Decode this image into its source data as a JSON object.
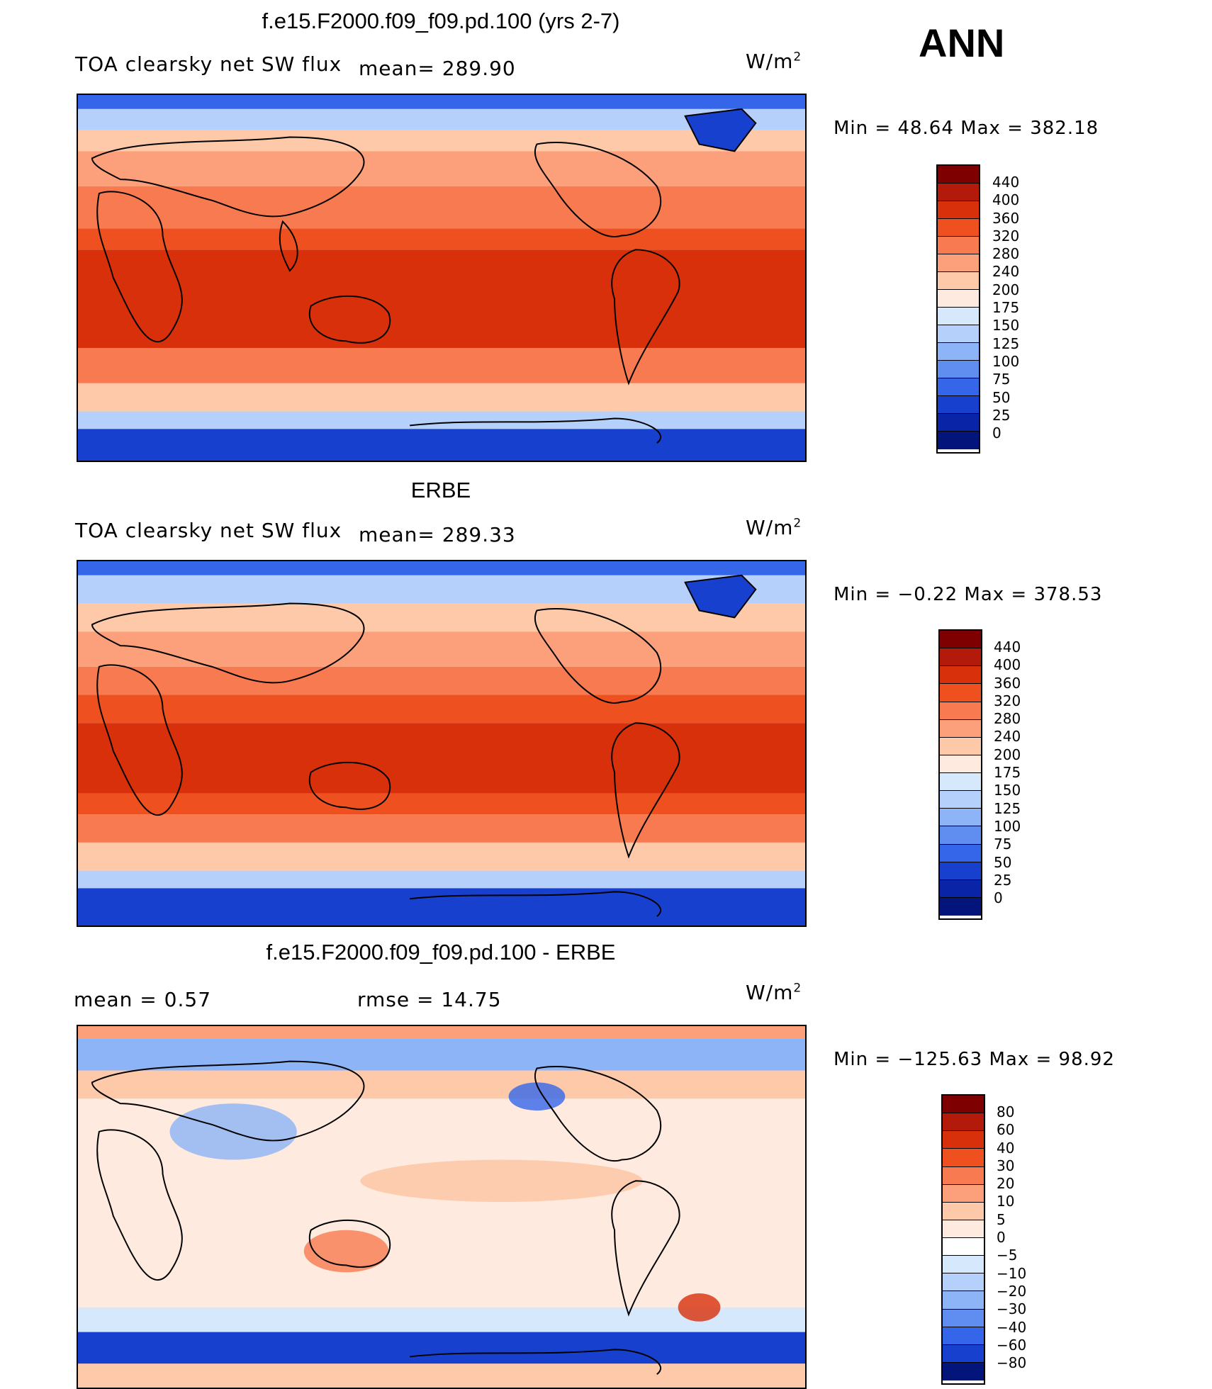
{
  "annotation": "ANN",
  "panels": [
    {
      "id": "model",
      "title": "f.e15.F2000.f09_f09.pd.100 (yrs 2-7)",
      "left_label": "TOA clearsky net SW flux",
      "stat_label": "mean= 289.90",
      "stat2_label": "",
      "units": "W/m",
      "units_sup": "2",
      "minmax": "Min =   48.64 Max = 382.18",
      "colorbar_labels": [
        "440",
        "400",
        "360",
        "320",
        "280",
        "240",
        "200",
        "175",
        "150",
        "125",
        "100",
        "75",
        "50",
        "25",
        "0"
      ],
      "colorbar_colors": [
        "#7f0000",
        "#b41a0a",
        "#d8300a",
        "#ef5020",
        "#f77a50",
        "#fba07a",
        "#fdc9a8",
        "#feeade",
        "#d6e8fb",
        "#b4d0fb",
        "#8cb4f6",
        "#5f8ef0",
        "#3566ea",
        "#1840cf",
        "#0a24a8",
        "#03157a"
      ]
    },
    {
      "id": "obs",
      "title": "ERBE",
      "left_label": "TOA clearsky net SW flux",
      "stat_label": "mean= 289.33",
      "stat2_label": "",
      "units": "W/m",
      "units_sup": "2",
      "minmax": "Min =  −0.22 Max = 378.53",
      "colorbar_labels": [
        "440",
        "400",
        "360",
        "320",
        "280",
        "240",
        "200",
        "175",
        "150",
        "125",
        "100",
        "75",
        "50",
        "25",
        "0"
      ],
      "colorbar_colors": [
        "#7f0000",
        "#b41a0a",
        "#d8300a",
        "#ef5020",
        "#f77a50",
        "#fba07a",
        "#fdc9a8",
        "#feeade",
        "#d6e8fb",
        "#b4d0fb",
        "#8cb4f6",
        "#5f8ef0",
        "#3566ea",
        "#1840cf",
        "#0a24a8",
        "#03157a"
      ]
    },
    {
      "id": "diff",
      "title": "f.e15.F2000.f09_f09.pd.100 - ERBE",
      "left_label": "mean =     0.57",
      "stat_label": "rmse =    14.75",
      "stat2_label": "",
      "units": "W/m",
      "units_sup": "2",
      "minmax": "Min = −125.63 Max =   98.92",
      "colorbar_labels": [
        "80",
        "60",
        "40",
        "30",
        "20",
        "10",
        "5",
        "0",
        "−5",
        "−10",
        "−20",
        "−30",
        "−40",
        "−60",
        "−80"
      ],
      "colorbar_colors": [
        "#7f0000",
        "#b41a0a",
        "#d8300a",
        "#ef5020",
        "#f77a50",
        "#fba07a",
        "#fdc9a8",
        "#feeade",
        "#ffffff",
        "#d6e8fb",
        "#b4d0fb",
        "#8cb4f6",
        "#5f8ef0",
        "#3566ea",
        "#1840cf",
        "#03157a"
      ]
    }
  ]
}
